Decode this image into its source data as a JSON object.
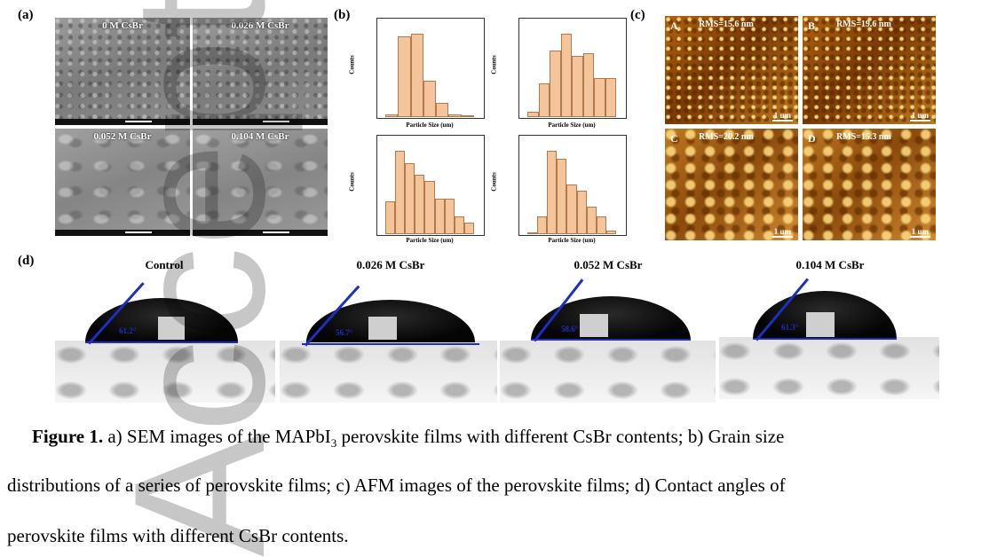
{
  "panels": {
    "a": {
      "label": "(a)",
      "sem": [
        "0 M CsBr",
        "0.026 M CsBr",
        "0.052 M CsBr",
        "0.104 M CsBr"
      ]
    },
    "b": {
      "label": "(b)",
      "histograms": [
        {
          "ylabel": "Counts",
          "xlabel": "Particle Size (um)",
          "values": [
            1,
            29,
            30,
            13,
            5,
            1,
            0.5
          ]
        },
        {
          "ylabel": "Counts",
          "xlabel": "Particle Size (um)",
          "values": [
            1,
            6,
            12,
            15,
            11,
            11.5,
            7,
            7
          ]
        },
        {
          "ylabel": "Counts",
          "xlabel": "Particle Size (um)",
          "values": [
            5.5,
            14,
            12,
            10,
            9,
            6,
            6,
            3,
            2
          ]
        },
        {
          "ylabel": "Counts",
          "xlabel": "Particle Size (um)",
          "values": [
            1,
            9,
            42,
            38,
            25,
            22,
            14,
            9,
            2
          ]
        }
      ]
    },
    "c": {
      "label": "(c)",
      "afm": [
        {
          "letter": "A",
          "rms": "RMS=15.6 nm",
          "scale": "1 um"
        },
        {
          "letter": "B",
          "rms": "RMS=19.6 nm",
          "scale": "1 um"
        },
        {
          "letter": "C",
          "rms": "RMS=20.2 nm",
          "scale": "1 um"
        },
        {
          "letter": "D",
          "rms": "RMS=15.3 nm",
          "scale": "1 um"
        }
      ]
    },
    "d": {
      "label": "(d)",
      "contact": [
        {
          "title": "Control",
          "angle": "61.2°"
        },
        {
          "title": "0.026 M CsBr",
          "angle": "56.7°"
        },
        {
          "title": "0.052 M CsBr",
          "angle": "58.6°"
        },
        {
          "title": "0.104 M CsBr",
          "angle": "61.3°"
        }
      ]
    }
  },
  "watermark": "Accepted",
  "caption": {
    "lead": "Figure 1.",
    "line1": " a) SEM images of the MAPbI",
    "sub": "3",
    "line1b": " perovskite films with different CsBr contents; b) Grain size",
    "line2": "distributions of a series of perovskite films; c) AFM images of the perovskite films; d) Contact angles of",
    "line3": "perovskite films with different CsBr contents."
  }
}
